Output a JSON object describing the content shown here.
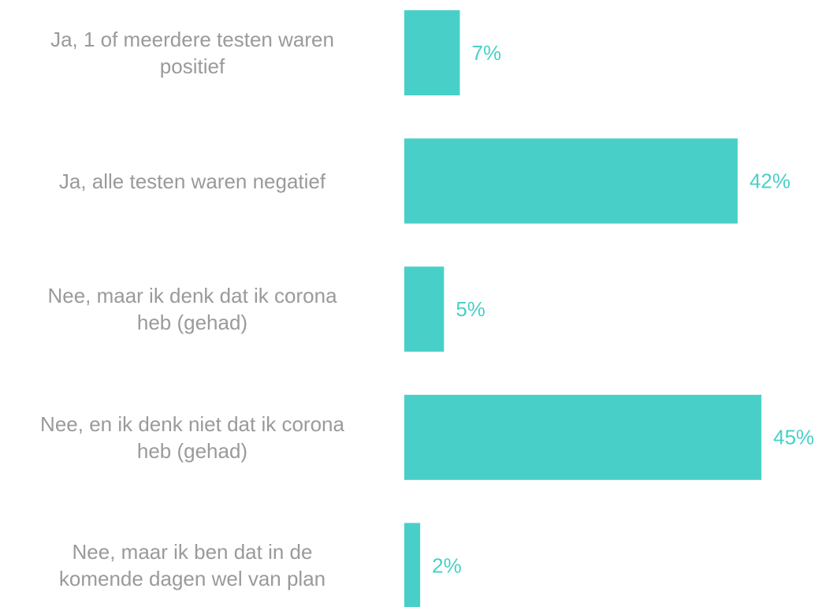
{
  "chart_data": {
    "type": "barh",
    "categories": [
      "Ja, 1 of meerdere testen waren\npositief",
      "Ja, alle testen waren negatief",
      "Nee, maar ik denk dat ik corona\nheb (gehad)",
      "Nee, en ik denk niet dat ik corona\nheb (gehad)",
      "Nee, maar ik ben dat in de\nkomende dagen wel van plan"
    ],
    "values": [
      7,
      42,
      5,
      45,
      2
    ],
    "value_labels": [
      "7%",
      "42%",
      "5%",
      "45%",
      "2%"
    ],
    "color": "#48d0c8"
  }
}
